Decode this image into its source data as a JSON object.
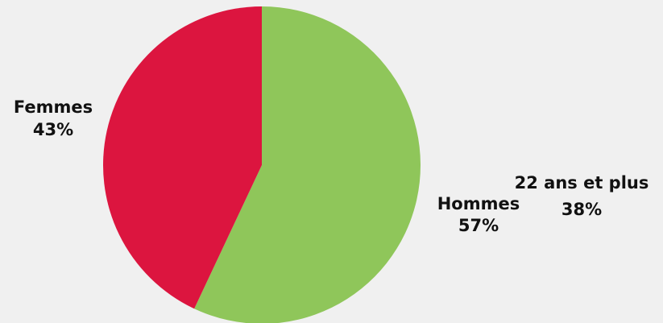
{
  "chart_data": {
    "type": "pie",
    "slices": [
      {
        "label": "Hommes",
        "value": 57,
        "value_label": "57%",
        "color": "#8fc65a"
      },
      {
        "label": "Femmes",
        "value": 43,
        "value_label": "43%",
        "color": "#dc153f"
      }
    ],
    "start_angle": "top",
    "direction": "clockwise",
    "annotations": [
      {
        "text": "22 ans et plus",
        "value_label": "38%"
      }
    ]
  }
}
